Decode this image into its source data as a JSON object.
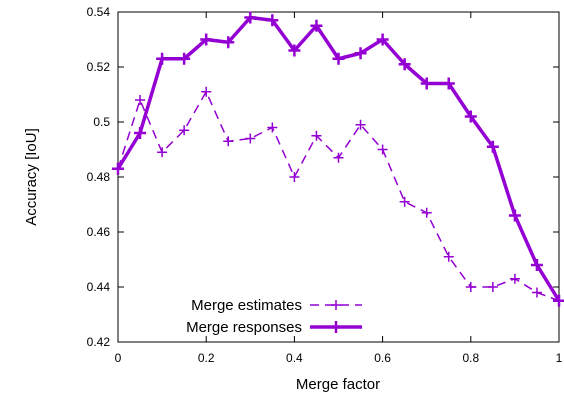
{
  "chart_data": {
    "type": "line",
    "xlabel": "Merge factor",
    "ylabel": "Accuracy [IoU]",
    "xlim": [
      0,
      1
    ],
    "ylim": [
      0.42,
      0.54
    ],
    "xticks": [
      "0",
      "0.2",
      "0.4",
      "0.6",
      "0.8",
      "1"
    ],
    "yticks": [
      "0.42",
      "0.44",
      "0.46",
      "0.48",
      "0.5",
      "0.52",
      "0.54"
    ],
    "grid": false,
    "legend_position": "bottom-left",
    "x": [
      0,
      0.05,
      0.1,
      0.15,
      0.2,
      0.25,
      0.3,
      0.35,
      0.4,
      0.45,
      0.5,
      0.55,
      0.6,
      0.65,
      0.7,
      0.75,
      0.8,
      0.85,
      0.9,
      0.95,
      1.0
    ],
    "series": [
      {
        "name": "Merge estimates",
        "style": "dashed",
        "color": "#9400d3",
        "values": [
          0.483,
          0.508,
          0.489,
          0.497,
          0.511,
          0.493,
          0.494,
          0.498,
          0.48,
          0.495,
          0.487,
          0.499,
          0.49,
          0.471,
          0.467,
          0.451,
          0.44,
          0.44,
          0.443,
          0.438,
          0.435
        ]
      },
      {
        "name": "Merge responses",
        "style": "solid",
        "color": "#9400d3",
        "values": [
          0.483,
          0.496,
          0.523,
          0.523,
          0.53,
          0.529,
          0.538,
          0.537,
          0.526,
          0.535,
          0.523,
          0.525,
          0.53,
          0.521,
          0.514,
          0.514,
          0.502,
          0.491,
          0.466,
          0.448,
          0.435
        ]
      }
    ]
  }
}
